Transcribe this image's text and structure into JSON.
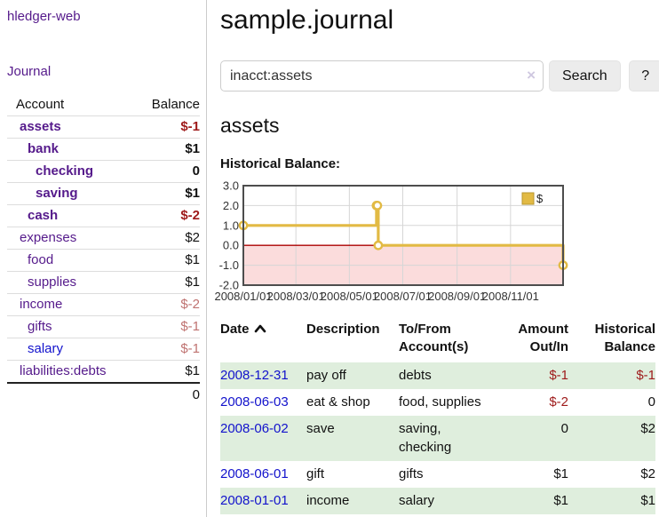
{
  "sidebar": {
    "brand": "hledger-web",
    "journal_link": "Journal",
    "accounts_table": {
      "headers": {
        "account": "Account",
        "balance": "Balance"
      },
      "rows": [
        {
          "name": "assets",
          "balance": "$-1",
          "level": 1,
          "bold": true,
          "negative": true,
          "unvisited": false
        },
        {
          "name": "bank",
          "balance": "$1",
          "level": 2,
          "bold": true,
          "negative": false,
          "unvisited": false
        },
        {
          "name": "checking",
          "balance": "0",
          "level": 3,
          "bold": true,
          "negative": false,
          "unvisited": false
        },
        {
          "name": "saving",
          "balance": "$1",
          "level": 3,
          "bold": true,
          "negative": false,
          "unvisited": false
        },
        {
          "name": "cash",
          "balance": "$-2",
          "level": 2,
          "bold": true,
          "negative": true,
          "unvisited": false
        },
        {
          "name": "expenses",
          "balance": "$2",
          "level": 1,
          "bold": false,
          "negative": false,
          "unvisited": false
        },
        {
          "name": "food",
          "balance": "$1",
          "level": 2,
          "bold": false,
          "negative": false,
          "unvisited": false
        },
        {
          "name": "supplies",
          "balance": "$1",
          "level": 2,
          "bold": false,
          "negative": false,
          "unvisited": false
        },
        {
          "name": "income",
          "balance": "$-2",
          "level": 1,
          "bold": false,
          "negative": true,
          "unvisited": false
        },
        {
          "name": "gifts",
          "balance": "$-1",
          "level": 2,
          "bold": false,
          "negative": true,
          "unvisited": false
        },
        {
          "name": "salary",
          "balance": "$-1",
          "level": 2,
          "bold": false,
          "negative": true,
          "unvisited": true
        },
        {
          "name": "liabilities:debts",
          "balance": "$1",
          "level": 1,
          "bold": false,
          "negative": false,
          "unvisited": false
        }
      ],
      "total": "0"
    }
  },
  "header": {
    "title": "sample.journal"
  },
  "search": {
    "value": "inacct:assets",
    "clear_icon": "×",
    "button_label": "Search",
    "help_label": "?"
  },
  "register": {
    "title": "assets",
    "chart_label": "Historical Balance:",
    "table": {
      "headers": {
        "date": "Date",
        "sort_icon": "chevron-up",
        "description": "Description",
        "accounts": "To/From\nAccount(s)",
        "amount": "Amount\nOut/In",
        "balance": "Historical\nBalance"
      },
      "rows": [
        {
          "date": "2008-12-31",
          "description": "pay off",
          "accounts": "debts",
          "amount": "$-1",
          "balance": "$-1",
          "amount_neg": true,
          "balance_neg": true,
          "highlight": true
        },
        {
          "date": "2008-06-03",
          "description": "eat & shop",
          "accounts": "food, supplies",
          "amount": "$-2",
          "balance": "0",
          "amount_neg": true,
          "balance_neg": false,
          "highlight": false
        },
        {
          "date": "2008-06-02",
          "description": "save",
          "accounts": "saving,\nchecking",
          "amount": "0",
          "balance": "$2",
          "amount_neg": false,
          "balance_neg": false,
          "highlight": true
        },
        {
          "date": "2008-06-01",
          "description": "gift",
          "accounts": "gifts",
          "amount": "$1",
          "balance": "$2",
          "amount_neg": false,
          "balance_neg": false,
          "highlight": false
        },
        {
          "date": "2008-01-01",
          "description": "income",
          "accounts": "salary",
          "amount": "$1",
          "balance": "$1",
          "amount_neg": false,
          "balance_neg": false,
          "highlight": true
        }
      ]
    }
  },
  "chart_data": {
    "type": "line",
    "title": "Historical Balance",
    "step": true,
    "series": [
      {
        "name": "$",
        "points": [
          {
            "date": "2008-01-01",
            "value": 1
          },
          {
            "date": "2008-06-01",
            "value": 2
          },
          {
            "date": "2008-06-02",
            "value": 2
          },
          {
            "date": "2008-06-03",
            "value": 0
          },
          {
            "date": "2008-12-31",
            "value": -1
          }
        ]
      }
    ],
    "x_range": [
      "2008-01-01",
      "2008-12-31"
    ],
    "x_ticks": [
      "2008/01/01",
      "2008/03/01",
      "2008/05/01",
      "2008/07/01",
      "2008/09/01",
      "2008/11/01"
    ],
    "y_ticks": [
      3.0,
      2.0,
      1.0,
      0.0,
      -1.0,
      -2.0
    ],
    "ylim": [
      -2,
      3
    ],
    "grid": true,
    "legend": {
      "label": "$",
      "position": "top-right"
    },
    "colors": {
      "line": "#e2ba44",
      "marker_fill": "#ffffff",
      "negative_region": "#fbdcdc",
      "zero_line": "#ab0000",
      "border": "#4d4d4d",
      "grid": "#d6d6d6"
    }
  }
}
